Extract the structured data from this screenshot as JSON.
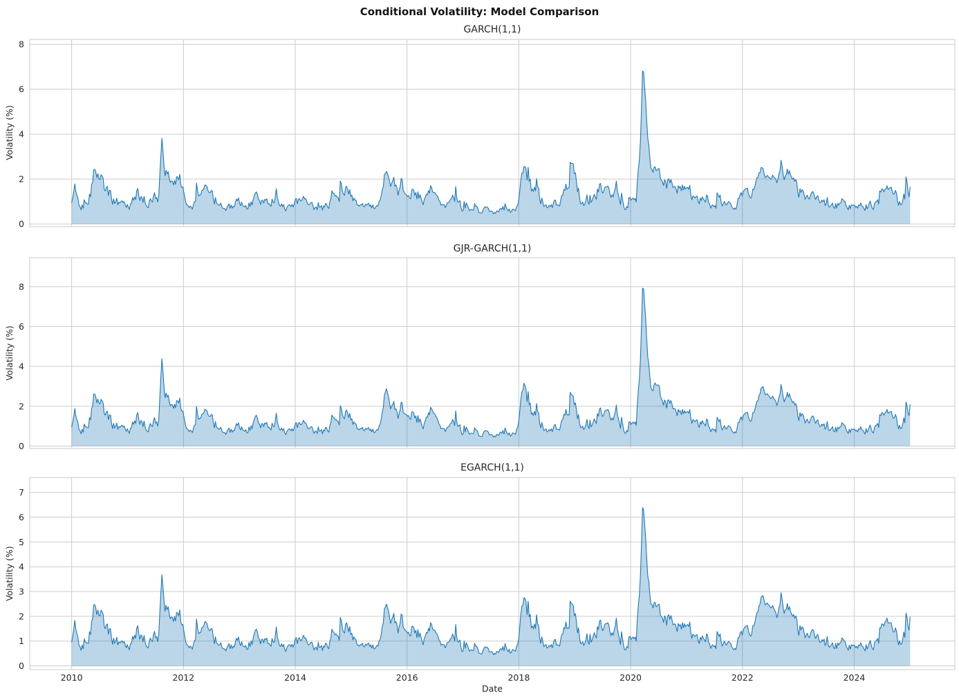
{
  "figure": {
    "title": "Conditional Volatility: Model Comparison",
    "colors": {
      "line": "#1f77b4",
      "fill": "rgba(31,119,180,0.30)",
      "grid": "#cccccc",
      "spine": "#c9c9c9",
      "tick_text": "#262626",
      "title_text": "#141414",
      "background": "#ffffff"
    }
  },
  "chart_data": {
    "type": "area",
    "title": "Conditional Volatility: Model Comparison",
    "xlabel": "Date",
    "x_unit": "decimal_year",
    "xlim": [
      2009.25,
      2025.8
    ],
    "xticks": [
      2010,
      2012,
      2014,
      2016,
      2018,
      2020,
      2022,
      2024
    ],
    "grid": true,
    "legend": "none",
    "x": [
      2010.0,
      2010.06,
      2010.13,
      2010.22,
      2010.33,
      2010.4,
      2010.45,
      2010.52,
      2010.58,
      2010.68,
      2010.8,
      2010.92,
      2011.05,
      2011.18,
      2011.3,
      2011.45,
      2011.56,
      2011.61,
      2011.66,
      2011.74,
      2011.83,
      2011.93,
      2012.02,
      2012.12,
      2012.25,
      2012.4,
      2012.55,
      2012.7,
      2012.88,
      2013.02,
      2013.15,
      2013.32,
      2013.45,
      2013.6,
      2013.78,
      2013.95,
      2014.1,
      2014.3,
      2014.5,
      2014.7,
      2014.82,
      2014.95,
      2015.1,
      2015.3,
      2015.52,
      2015.63,
      2015.7,
      2015.85,
      2016.0,
      2016.12,
      2016.28,
      2016.46,
      2016.55,
      2016.72,
      2016.86,
      2017.0,
      2017.2,
      2017.4,
      2017.6,
      2017.8,
      2017.95,
      2018.09,
      2018.16,
      2018.3,
      2018.5,
      2018.7,
      2018.85,
      2018.97,
      2019.1,
      2019.3,
      2019.45,
      2019.6,
      2019.78,
      2019.95,
      2020.1,
      2020.17,
      2020.22,
      2020.3,
      2020.38,
      2020.46,
      2020.58,
      2020.72,
      2020.88,
      2021.05,
      2021.25,
      2021.45,
      2021.65,
      2021.85,
      2022.0,
      2022.15,
      2022.28,
      2022.38,
      2022.5,
      2022.62,
      2022.75,
      2022.85,
      2023.0,
      2023.2,
      2023.4,
      2023.6,
      2023.8,
      2023.95,
      2024.1,
      2024.3,
      2024.45,
      2024.57,
      2024.7,
      2024.85,
      2024.93,
      2025.0
    ],
    "panels": [
      {
        "title": "GARCH(1,1)",
        "ylabel": "Volatility (%)",
        "yticks": [
          0,
          2,
          4,
          6,
          8
        ],
        "ylim": [
          -0.12,
          8.22
        ],
        "peak": {
          "x": 2020.22,
          "y": 7.4
        },
        "values": [
          0.95,
          1.8,
          0.85,
          0.75,
          1.3,
          2.35,
          1.95,
          2.1,
          1.6,
          1.3,
          1.0,
          0.8,
          0.85,
          1.45,
          0.8,
          1.05,
          1.25,
          3.85,
          2.3,
          2.15,
          1.95,
          2.15,
          1.15,
          0.75,
          1.25,
          1.45,
          1.05,
          0.85,
          0.8,
          0.95,
          0.8,
          1.25,
          0.95,
          1.15,
          0.75,
          0.8,
          1.05,
          0.75,
          0.7,
          1.1,
          1.45,
          1.35,
          1.05,
          0.8,
          0.85,
          2.45,
          1.6,
          1.3,
          1.6,
          1.5,
          0.95,
          1.55,
          0.9,
          0.75,
          1.15,
          0.7,
          0.55,
          0.6,
          0.52,
          0.72,
          0.58,
          2.3,
          1.8,
          1.25,
          0.85,
          0.8,
          1.45,
          2.55,
          1.15,
          0.95,
          1.55,
          1.7,
          1.05,
          0.78,
          0.9,
          3.2,
          7.4,
          4.2,
          2.4,
          2.6,
          1.85,
          1.75,
          1.5,
          1.4,
          1.05,
          0.92,
          0.98,
          0.88,
          1.15,
          1.5,
          1.9,
          2.4,
          2.2,
          1.9,
          2.15,
          2.4,
          1.45,
          1.15,
          0.95,
          0.82,
          0.92,
          0.75,
          0.85,
          0.8,
          0.95,
          1.85,
          1.15,
          1.0,
          1.45,
          1.25
        ]
      },
      {
        "title": "GJR-GARCH(1,1)",
        "ylabel": "Volatility (%)",
        "yticks": [
          0,
          2,
          4,
          6,
          8
        ],
        "ylim": [
          -0.12,
          9.45
        ],
        "peak": {
          "x": 2020.22,
          "y": 8.6
        },
        "values": [
          0.95,
          1.9,
          0.85,
          0.75,
          1.4,
          2.55,
          2.05,
          2.25,
          1.7,
          1.35,
          1.0,
          0.8,
          0.85,
          1.55,
          0.8,
          1.05,
          1.3,
          4.45,
          2.6,
          2.35,
          2.1,
          2.35,
          1.2,
          0.75,
          1.35,
          1.55,
          1.1,
          0.85,
          0.8,
          0.95,
          0.8,
          1.35,
          1.0,
          1.2,
          0.75,
          0.8,
          1.1,
          0.75,
          0.7,
          1.15,
          1.55,
          1.45,
          1.1,
          0.8,
          0.85,
          3.0,
          1.8,
          1.4,
          1.9,
          1.65,
          0.95,
          1.85,
          0.95,
          0.75,
          1.2,
          0.7,
          0.55,
          0.6,
          0.52,
          0.72,
          0.58,
          2.9,
          2.0,
          1.3,
          0.85,
          0.8,
          1.5,
          2.35,
          1.2,
          0.95,
          1.65,
          1.85,
          1.1,
          0.78,
          0.95,
          3.8,
          8.6,
          4.9,
          2.8,
          3.3,
          2.2,
          2.05,
          1.6,
          1.5,
          1.1,
          0.95,
          1.0,
          0.9,
          1.2,
          1.6,
          2.1,
          2.95,
          2.6,
          2.1,
          2.4,
          2.65,
          1.55,
          1.2,
          0.98,
          0.85,
          0.95,
          0.75,
          0.88,
          0.82,
          1.0,
          2.0,
          1.2,
          1.05,
          1.55,
          1.65
        ]
      },
      {
        "title": "EGARCH(1,1)",
        "ylabel": "Volatility (%)",
        "yticks": [
          0,
          1,
          2,
          3,
          4,
          5,
          6,
          7
        ],
        "ylim": [
          -0.15,
          7.6
        ],
        "peak": {
          "x": 2020.22,
          "y": 6.9
        },
        "values": [
          0.95,
          1.85,
          0.85,
          0.75,
          1.35,
          2.4,
          1.95,
          2.15,
          1.65,
          1.3,
          1.0,
          0.78,
          0.85,
          1.5,
          0.8,
          1.05,
          1.25,
          3.7,
          2.35,
          2.2,
          2.0,
          2.2,
          1.15,
          0.75,
          1.3,
          1.5,
          1.05,
          0.85,
          0.8,
          0.95,
          0.8,
          1.3,
          0.95,
          1.15,
          0.75,
          0.8,
          1.05,
          0.75,
          0.7,
          1.1,
          1.5,
          1.4,
          1.05,
          0.8,
          0.85,
          2.6,
          1.65,
          1.35,
          1.7,
          1.55,
          0.95,
          1.6,
          0.9,
          0.75,
          1.15,
          0.7,
          0.55,
          0.6,
          0.52,
          0.72,
          0.58,
          2.5,
          1.9,
          1.28,
          0.85,
          0.8,
          1.45,
          2.3,
          1.15,
          0.95,
          1.6,
          1.75,
          1.05,
          0.78,
          0.92,
          3.2,
          6.9,
          4.0,
          2.45,
          2.6,
          1.9,
          1.8,
          1.5,
          1.45,
          1.05,
          0.92,
          0.98,
          0.88,
          1.15,
          1.55,
          2.0,
          2.8,
          2.55,
          2.0,
          2.3,
          2.4,
          1.5,
          1.18,
          0.95,
          0.82,
          0.92,
          0.75,
          0.85,
          0.8,
          0.98,
          2.1,
          1.18,
          1.02,
          1.5,
          1.55
        ]
      }
    ],
    "render": {
      "seed": 13,
      "steps": 800,
      "ar": 0.5,
      "amp": 0.2,
      "jitter": 0.07,
      "spike_prob": 0.05,
      "spike_amp": 0.55,
      "gains": [
        1.0,
        1.05,
        1.0
      ]
    }
  }
}
